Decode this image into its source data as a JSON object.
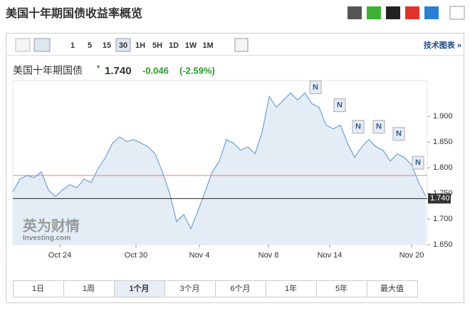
{
  "header": {
    "title": "美国十年期国债收益率概览"
  },
  "toolbar": {
    "intervals": [
      "1",
      "5",
      "15",
      "30",
      "1H",
      "5H",
      "1D",
      "1W",
      "1M"
    ],
    "selected": 3,
    "link": "技术图表 »"
  },
  "quote": {
    "name": "美国十年期国债",
    "price": "1.740",
    "change": "-0.046",
    "change_pct": "(-2.59%)"
  },
  "logo": {
    "name": "英为财情",
    "site": "Investing.com"
  },
  "tabs": {
    "items": [
      "1日",
      "1周",
      "1个月",
      "3个月",
      "6个月",
      "1年",
      "5年",
      "最大值"
    ],
    "selected": 2
  },
  "chart_data": {
    "type": "line",
    "color": "#6fa0d0",
    "fill": "#e4edf6",
    "values": [
      1.753,
      1.778,
      1.785,
      1.781,
      1.792,
      1.757,
      1.744,
      1.757,
      1.767,
      1.761,
      1.778,
      1.771,
      1.799,
      1.82,
      1.848,
      1.86,
      1.851,
      1.855,
      1.848,
      1.841,
      1.827,
      1.792,
      1.751,
      1.695,
      1.709,
      1.681,
      1.716,
      1.753,
      1.792,
      1.813,
      1.855,
      1.848,
      1.834,
      1.841,
      1.827,
      1.869,
      1.939,
      1.918,
      1.932,
      1.946,
      1.932,
      1.946,
      1.925,
      1.918,
      1.883,
      1.876,
      1.883,
      1.848,
      1.82,
      1.841,
      1.855,
      1.841,
      1.834,
      1.813,
      1.827,
      1.82,
      1.806,
      1.771,
      1.744
    ],
    "xlim": [
      0,
      58
    ],
    "xticks": [
      {
        "value": 6.6,
        "label": "Oct 24"
      },
      {
        "value": 17.3,
        "label": "Oct 30"
      },
      {
        "value": 26.2,
        "label": "Nov 4"
      },
      {
        "value": 35.9,
        "label": "Nov 8"
      },
      {
        "value": 44.5,
        "label": "Nov 14"
      },
      {
        "value": 56,
        "label": "Nov 20"
      }
    ],
    "ylim": [
      1.65,
      1.97
    ],
    "yticks": [
      {
        "value": 1.65,
        "label": "1.650"
      },
      {
        "value": 1.7,
        "label": "1.700"
      },
      {
        "value": 1.75,
        "label": "1.750"
      },
      {
        "value": 1.8,
        "label": "1.800"
      },
      {
        "value": 1.85,
        "label": "1.850"
      },
      {
        "value": 1.9,
        "label": "1.900"
      }
    ],
    "reference_line": {
      "value": 1.785,
      "color": "#e08080"
    },
    "last_price": {
      "value": 1.74,
      "label": "1.740"
    },
    "news_markers": [
      {
        "x": 42.5,
        "label": "N"
      },
      {
        "x": 45.9,
        "label": "N"
      },
      {
        "x": 48.5,
        "label": "N"
      },
      {
        "x": 51.4,
        "label": "N"
      },
      {
        "x": 54.2,
        "label": "N"
      },
      {
        "x": 56.9,
        "label": "N"
      }
    ]
  }
}
